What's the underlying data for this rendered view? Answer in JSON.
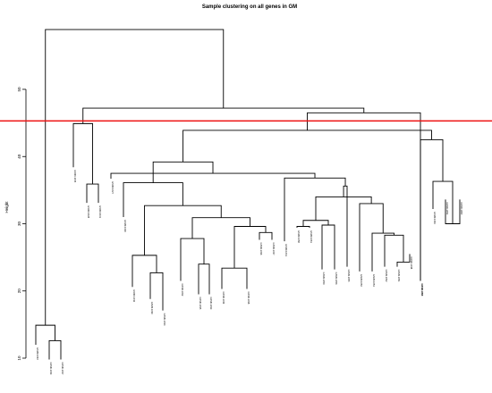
{
  "chart_data": {
    "type": "dendrogram",
    "title": "Sample clustering on all genes in GM",
    "ylabel": "Height",
    "xlabel": "",
    "ylim": [
      10,
      60
    ],
    "yticks": [
      10,
      20,
      30,
      40,
      50
    ],
    "cut_height": 45.3,
    "colors": {
      "branches": "#000000",
      "cut_line": "#ee1111"
    },
    "leaves": [
      "GSM9.1040",
      "GSM9.1043",
      "GSM9.1037",
      "GSM9.1045",
      "GSM9.1028",
      "GSM9.1031",
      "GSM9.1027",
      "GSM9.1026",
      "GSM9.1042",
      "GSM9.1039",
      "GSM9.1034",
      "GSM9.1032",
      "GSM9.1035",
      "GSM9.1033",
      "GSM9.1044",
      "GSM9.1038",
      "GSM9.1036",
      "GSM9.1047",
      "GSM9.1041",
      "GSM9.1058",
      "GSM9.1061",
      "GSM9.1059",
      "GSM9.1056",
      "GSM9.1055",
      "GSM9.1050",
      "GSM9.1053",
      "GSM9.1052",
      "GSM9.1051",
      "GSM9.1048",
      "GSM9.1057",
      "GSM9.1046",
      "GSM9.1049",
      "GSM9.1054",
      "GSM9.1060"
    ],
    "leaf_heights": [
      12,
      9.8,
      9.8,
      38.4,
      33.1,
      33.1,
      36.7,
      31,
      20.6,
      18.8,
      17.1,
      21.5,
      19.5,
      19.5,
      20.3,
      20.3,
      27.6,
      27.6,
      27.4,
      29.4,
      29.4,
      23.2,
      23.2,
      23.6,
      22.9,
      22.9,
      23.6,
      23.6,
      25.5,
      21.5,
      21.5,
      32.2,
      33.6,
      33.6
    ],
    "merges": [
      [
        -2,
        -3,
        12.6
      ],
      [
        -1,
        1,
        14.9
      ],
      [
        -5,
        -6,
        35.9
      ],
      [
        -4,
        3,
        44.9
      ],
      [
        -10,
        -11,
        22.7
      ],
      [
        -9,
        5,
        25.3
      ],
      [
        -13,
        -14,
        24.0
      ],
      [
        -12,
        7,
        27.8
      ],
      [
        -15,
        -16,
        23.4
      ],
      [
        -17,
        -18,
        28.7
      ],
      [
        9,
        10,
        29.6
      ],
      [
        8,
        11,
        30.9
      ],
      [
        6,
        12,
        32.7
      ],
      [
        -8,
        13,
        36.1
      ],
      [
        -22,
        -23,
        29.8
      ],
      [
        -20,
        -21,
        29.6
      ],
      [
        15,
        16,
        30.5
      ],
      [
        -28,
        -29,
        24.3
      ],
      [
        -27,
        18,
        28.3
      ],
      [
        -26,
        19,
        28.6
      ],
      [
        -25,
        20,
        33.0
      ],
      [
        17,
        21,
        34.0
      ],
      [
        -24,
        22,
        35.6
      ],
      [
        -19,
        23,
        36.8
      ],
      [
        -7,
        24,
        37.5
      ],
      [
        25,
        14,
        39.2
      ],
      [
        -33,
        -34,
        30.0
      ],
      [
        -32,
        27,
        36.3
      ],
      [
        -31,
        28,
        42.5
      ],
      [
        26,
        29,
        43.9
      ],
      [
        -30,
        30,
        46.5
      ],
      [
        4,
        31,
        47.2
      ],
      [
        2,
        32,
        58.9
      ]
    ]
  }
}
